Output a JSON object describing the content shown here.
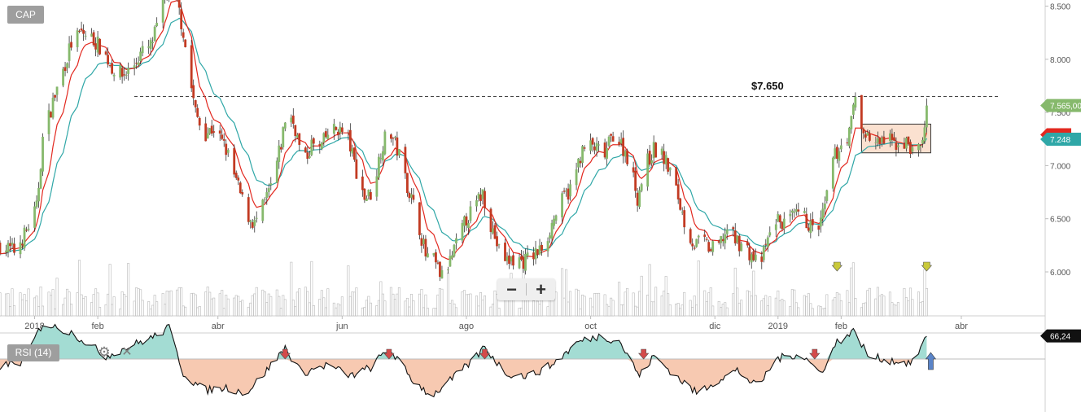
{
  "symbol": "CAP",
  "indicator": {
    "label": "RSI (14)",
    "gear_icon": "gear-icon",
    "close_icon": "close-icon"
  },
  "zoom": {
    "minus": "−",
    "plus": "+"
  },
  "annotation": {
    "label": "$7.650",
    "value": 7.65
  },
  "colors": {
    "up": "#86b96c",
    "down": "#c23a22",
    "ma_fast": "#e2281f",
    "ma_slow": "#2fa7a7",
    "volume": "#d3d3d3",
    "rsi_line": "#111111",
    "rsi_above": "#a3dcd3",
    "rsi_below": "#f7c9b1",
    "rect_fill": "#fbe1d0",
    "arrow_down": "#c9c93a",
    "arrow_red": "#d44a4a",
    "arrow_blue": "#5a84c8"
  },
  "chart_data": {
    "type": "candlestick",
    "x_range": [
      "2017-12-15",
      "2019-04-15"
    ],
    "ylim": [
      5.68,
      8.65
    ],
    "price_ticks": [
      6.0,
      6.5,
      7.0,
      7.5,
      8.0,
      8.5
    ],
    "x_ticks": [
      {
        "label": "dic",
        "date": "2017-12-01"
      },
      {
        "label": "2018",
        "date": "2018-01-01"
      },
      {
        "label": "feb",
        "date": "2018-02-01"
      },
      {
        "label": "abr",
        "date": "2018-04-01"
      },
      {
        "label": "jun",
        "date": "2018-06-01"
      },
      {
        "label": "ago",
        "date": "2018-08-01"
      },
      {
        "label": "oct",
        "date": "2018-10-01"
      },
      {
        "label": "dic",
        "date": "2018-12-01"
      },
      {
        "label": "2019",
        "date": "2019-01-01"
      },
      {
        "label": "feb",
        "date": "2019-02-01"
      },
      {
        "label": "abr",
        "date": "2019-04-01"
      }
    ],
    "close_path": [
      [
        "2017-12-15",
        6.25
      ],
      [
        "2017-12-22",
        6.2
      ],
      [
        "2017-12-27",
        6.35
      ],
      [
        "2018-01-02",
        6.6
      ],
      [
        "2018-01-05",
        7.25
      ],
      [
        "2018-01-10",
        7.6
      ],
      [
        "2018-01-15",
        7.9
      ],
      [
        "2018-01-19",
        8.15
      ],
      [
        "2018-01-24",
        8.25
      ],
      [
        "2018-01-29",
        8.2
      ],
      [
        "2018-02-03",
        8.1
      ],
      [
        "2018-02-08",
        7.92
      ],
      [
        "2018-02-13",
        7.85
      ],
      [
        "2018-02-18",
        7.92
      ],
      [
        "2018-02-22",
        8.05
      ],
      [
        "2018-02-27",
        8.12
      ],
      [
        "2018-03-03",
        8.35
      ],
      [
        "2018-03-06",
        8.6
      ],
      [
        "2018-03-09",
        8.7
      ],
      [
        "2018-03-12",
        8.55
      ],
      [
        "2018-03-15",
        8.25
      ],
      [
        "2018-03-18",
        7.85
      ],
      [
        "2018-03-21",
        7.5
      ],
      [
        "2018-03-25",
        7.3
      ],
      [
        "2018-03-30",
        7.35
      ],
      [
        "2018-04-05",
        7.15
      ],
      [
        "2018-04-10",
        6.85
      ],
      [
        "2018-04-15",
        6.55
      ],
      [
        "2018-04-19",
        6.45
      ],
      [
        "2018-04-23",
        6.6
      ],
      [
        "2018-04-28",
        6.85
      ],
      [
        "2018-05-02",
        7.2
      ],
      [
        "2018-05-05",
        7.55
      ],
      [
        "2018-05-09",
        7.35
      ],
      [
        "2018-05-13",
        7.0
      ],
      [
        "2018-05-17",
        7.2
      ],
      [
        "2018-05-21",
        7.15
      ],
      [
        "2018-05-25",
        7.3
      ],
      [
        "2018-05-30",
        7.35
      ],
      [
        "2018-06-04",
        7.25
      ],
      [
        "2018-06-08",
        6.95
      ],
      [
        "2018-06-12",
        6.7
      ],
      [
        "2018-06-16",
        6.75
      ],
      [
        "2018-06-20",
        7.15
      ],
      [
        "2018-06-24",
        7.35
      ],
      [
        "2018-06-29",
        7.1
      ],
      [
        "2018-07-04",
        6.75
      ],
      [
        "2018-07-08",
        6.5
      ],
      [
        "2018-07-12",
        6.15
      ],
      [
        "2018-07-16",
        6.1
      ],
      [
        "2018-07-20",
        5.95
      ],
      [
        "2018-07-24",
        6.1
      ],
      [
        "2018-07-28",
        6.3
      ],
      [
        "2018-08-01",
        6.5
      ],
      [
        "2018-08-05",
        6.6
      ],
      [
        "2018-08-09",
        6.75
      ],
      [
        "2018-08-13",
        6.45
      ],
      [
        "2018-08-17",
        6.2
      ],
      [
        "2018-08-21",
        6.1
      ],
      [
        "2018-08-25",
        6.12
      ],
      [
        "2018-08-29",
        6.1
      ],
      [
        "2018-09-02",
        6.15
      ],
      [
        "2018-09-06",
        6.2
      ],
      [
        "2018-09-10",
        6.35
      ],
      [
        "2018-09-14",
        6.55
      ],
      [
        "2018-09-18",
        6.7
      ],
      [
        "2018-09-22",
        6.8
      ],
      [
        "2018-09-26",
        7.1
      ],
      [
        "2018-09-30",
        7.2
      ],
      [
        "2018-10-04",
        7.15
      ],
      [
        "2018-10-08",
        7.1
      ],
      [
        "2018-10-12",
        7.3
      ],
      [
        "2018-10-16",
        7.2
      ],
      [
        "2018-10-20",
        7.05
      ],
      [
        "2018-10-24",
        6.7
      ],
      [
        "2018-10-28",
        7.0
      ],
      [
        "2018-11-01",
        7.15
      ],
      [
        "2018-11-05",
        7.1
      ],
      [
        "2018-11-09",
        6.95
      ],
      [
        "2018-11-13",
        6.7
      ],
      [
        "2018-11-17",
        6.4
      ],
      [
        "2018-11-21",
        6.25
      ],
      [
        "2018-11-25",
        6.3
      ],
      [
        "2018-11-29",
        6.2
      ],
      [
        "2018-12-03",
        6.25
      ],
      [
        "2018-12-07",
        6.4
      ],
      [
        "2018-12-11",
        6.3
      ],
      [
        "2018-12-15",
        6.25
      ],
      [
        "2018-12-19",
        6.15
      ],
      [
        "2018-12-23",
        6.05
      ],
      [
        "2018-12-27",
        6.3
      ],
      [
        "2018-12-31",
        6.5
      ],
      [
        "2019-01-04",
        6.45
      ],
      [
        "2019-01-08",
        6.5
      ],
      [
        "2019-01-12",
        6.55
      ],
      [
        "2019-01-16",
        6.45
      ],
      [
        "2019-01-20",
        6.35
      ],
      [
        "2019-01-24",
        6.6
      ],
      [
        "2019-01-28",
        7.05
      ],
      [
        "2019-02-01",
        7.2
      ],
      [
        "2019-02-05",
        7.3
      ],
      [
        "2019-02-08",
        7.65
      ],
      [
        "2019-02-11",
        7.35
      ],
      [
        "2019-02-15",
        7.25
      ],
      [
        "2019-02-19",
        7.2
      ],
      [
        "2019-02-23",
        7.25
      ],
      [
        "2019-02-27",
        7.2
      ],
      [
        "2019-03-03",
        7.22
      ],
      [
        "2019-03-06",
        7.2
      ],
      [
        "2019-03-09",
        7.1
      ],
      [
        "2019-03-13",
        7.22
      ],
      [
        "2019-03-15",
        7.565
      ]
    ],
    "price_labels": [
      {
        "value": 7.565,
        "text": "7.565,00",
        "color": "#86b96c"
      },
      {
        "value": 7.29,
        "text": "",
        "color": "#e2281f"
      },
      {
        "value": 7.248,
        "text": "7.248",
        "color": "#2fa7a7"
      }
    ],
    "consolidation_box": {
      "start": "2019-02-11",
      "end": "2019-03-17",
      "low": 7.12,
      "high": 7.39
    },
    "volume_arrows": [
      {
        "date": "2019-01-30"
      },
      {
        "date": "2019-03-15"
      }
    ],
    "rsi": {
      "label": "RSI (14)",
      "last_value_text": "66,24",
      "path": [
        [
          "2017-12-15",
          45
        ],
        [
          "2017-12-26",
          48
        ],
        [
          "2018-01-05",
          75
        ],
        [
          "2018-01-20",
          68
        ],
        [
          "2018-02-05",
          52
        ],
        [
          "2018-02-15",
          58
        ],
        [
          "2018-03-01",
          66
        ],
        [
          "2018-03-08",
          72
        ],
        [
          "2018-03-15",
          40
        ],
        [
          "2018-03-25",
          28
        ],
        [
          "2018-04-05",
          30
        ],
        [
          "2018-04-15",
          26
        ],
        [
          "2018-04-25",
          42
        ],
        [
          "2018-05-04",
          58
        ],
        [
          "2018-05-12",
          40
        ],
        [
          "2018-05-25",
          46
        ],
        [
          "2018-06-05",
          38
        ],
        [
          "2018-06-15",
          44
        ],
        [
          "2018-06-24",
          58
        ],
        [
          "2018-07-05",
          36
        ],
        [
          "2018-07-15",
          24
        ],
        [
          "2018-07-25",
          36
        ],
        [
          "2018-08-05",
          50
        ],
        [
          "2018-08-10",
          59
        ],
        [
          "2018-08-20",
          40
        ],
        [
          "2018-09-01",
          38
        ],
        [
          "2018-09-12",
          46
        ],
        [
          "2018-09-25",
          62
        ],
        [
          "2018-10-05",
          66
        ],
        [
          "2018-10-15",
          63
        ],
        [
          "2018-10-25",
          38
        ],
        [
          "2018-11-01",
          52
        ],
        [
          "2018-11-12",
          38
        ],
        [
          "2018-11-22",
          26
        ],
        [
          "2018-12-02",
          35
        ],
        [
          "2018-12-12",
          42
        ],
        [
          "2018-12-22",
          30
        ],
        [
          "2018-12-31",
          50
        ],
        [
          "2019-01-12",
          54
        ],
        [
          "2019-01-22",
          40
        ],
        [
          "2019-01-30",
          62
        ],
        [
          "2019-02-08",
          70
        ],
        [
          "2019-02-14",
          52
        ],
        [
          "2019-02-25",
          49
        ],
        [
          "2019-03-08",
          47
        ],
        [
          "2019-03-15",
          66
        ]
      ],
      "arrows": [
        {
          "date": "2018-05-04",
          "type": "red"
        },
        {
          "date": "2018-06-24",
          "type": "red"
        },
        {
          "date": "2018-08-10",
          "type": "red"
        },
        {
          "date": "2018-10-27",
          "type": "red"
        },
        {
          "date": "2019-01-19",
          "type": "red"
        },
        {
          "date": "2019-03-17",
          "type": "blue-up"
        }
      ]
    }
  }
}
